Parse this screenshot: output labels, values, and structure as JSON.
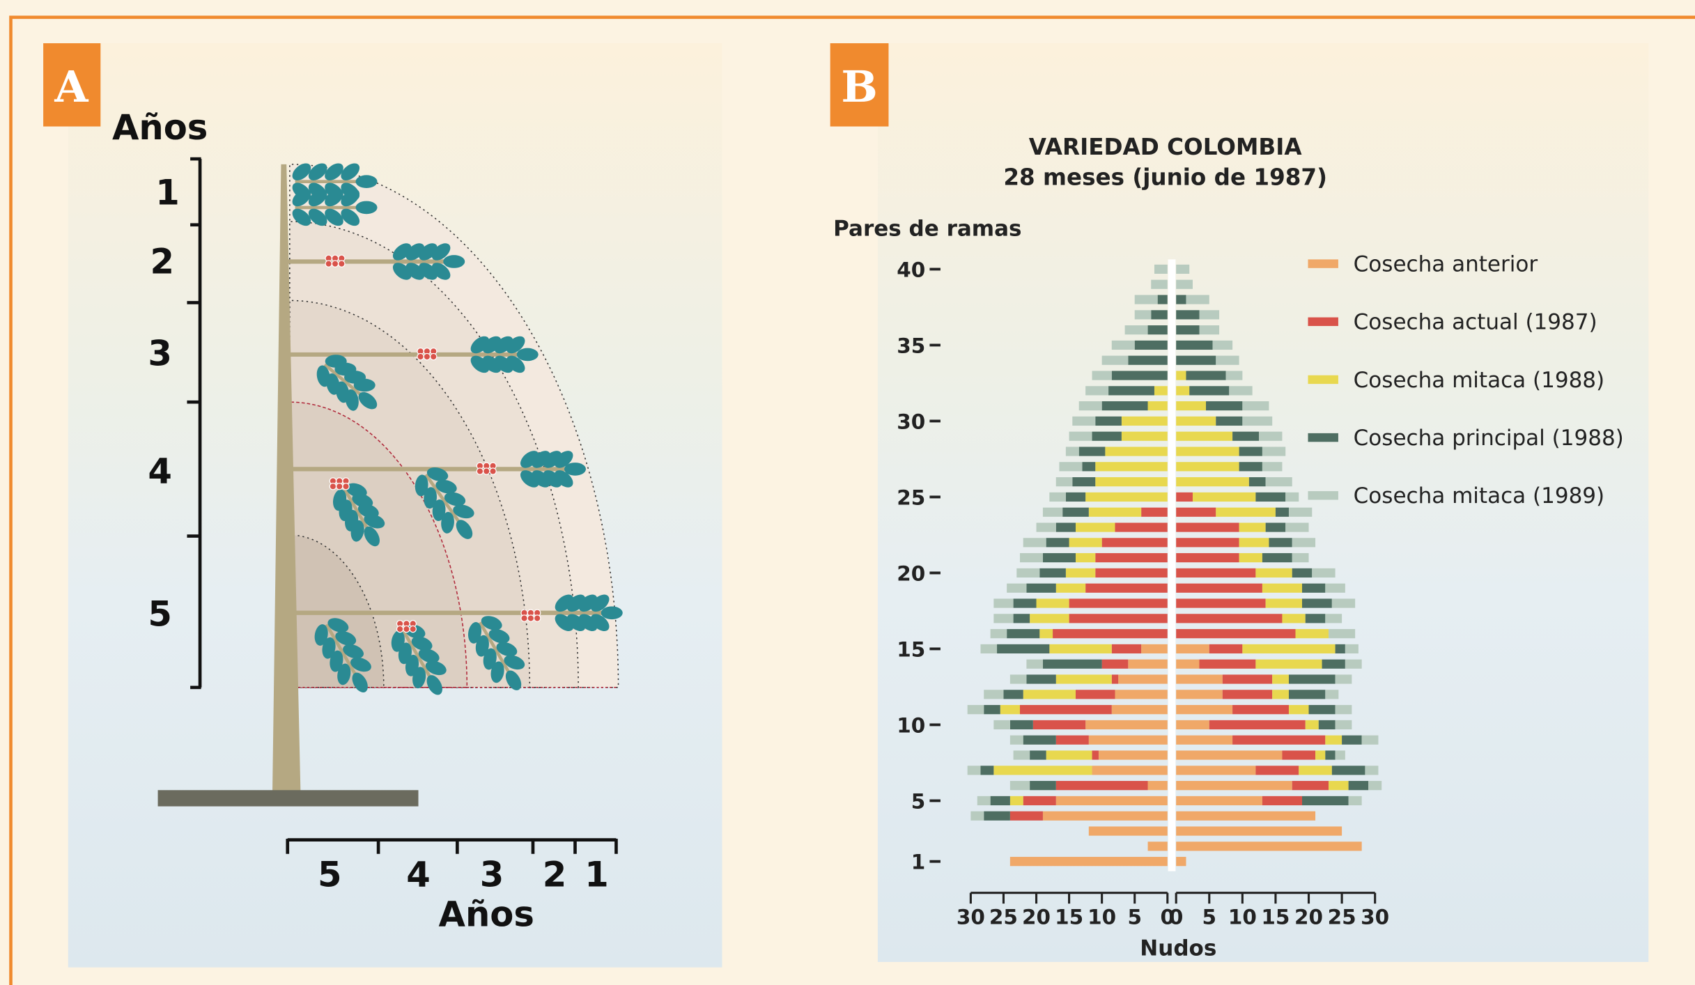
{
  "panel_a": {
    "label": "A",
    "y_axis_title": "Años",
    "y_labels": [
      "1",
      "2",
      "3",
      "4",
      "5"
    ],
    "x_labels": [
      "5",
      "4",
      "3",
      "2",
      "1"
    ],
    "x_axis_title": "Años"
  },
  "chart_data": {
    "type": "pyramid",
    "label": "B",
    "title": "VARIEDAD COLOMBIA",
    "subtitle": "28 meses (junio de 1987)",
    "y_axis_label": "Pares de ramas",
    "x_axis_label": "Nudos",
    "categories": [
      1,
      null,
      null,
      null,
      5,
      null,
      null,
      null,
      null,
      10,
      null,
      null,
      null,
      null,
      15,
      null,
      null,
      null,
      null,
      20,
      null,
      null,
      null,
      null,
      25,
      null,
      null,
      null,
      null,
      30,
      null,
      null,
      null,
      null,
      35,
      null,
      null,
      null,
      null,
      40
    ],
    "xlim": [
      0,
      30
    ],
    "xticks": [
      0,
      5,
      10,
      15,
      20,
      25,
      30
    ],
    "series": [
      {
        "name": "Cosecha anterior",
        "color": "#f0a868",
        "left": [
          24,
          3,
          12,
          19,
          17,
          3,
          11.5,
          10.5,
          12,
          12.5,
          8.5,
          8,
          7.5,
          6,
          4,
          0,
          0,
          0,
          0,
          0,
          0,
          0,
          0,
          0,
          0,
          0,
          0,
          0,
          0,
          0,
          0,
          0,
          0,
          0,
          0,
          0,
          0,
          0,
          0,
          0
        ],
        "right": [
          1.5,
          28,
          25,
          21,
          13,
          17.5,
          12,
          16,
          8.5,
          5,
          8.5,
          7,
          7,
          3.5,
          5,
          0,
          0,
          0,
          0,
          0,
          0,
          0,
          0,
          0,
          0,
          0,
          0,
          0,
          0,
          0,
          0,
          0,
          0,
          0,
          0,
          0,
          0,
          0,
          0,
          0
        ]
      },
      {
        "name": "Cosecha actual (1987)",
        "color": "#d9534a",
        "left": [
          0,
          0,
          0,
          5,
          5,
          14,
          0,
          1,
          5,
          8,
          14,
          6,
          1,
          4,
          4.5,
          17.5,
          15,
          15,
          12.5,
          11,
          11,
          10,
          8,
          4,
          0,
          0,
          0,
          0,
          0,
          0,
          0,
          0,
          0,
          0,
          0,
          0,
          0,
          0,
          0,
          0
        ],
        "right": [
          0,
          0,
          0,
          0,
          6,
          5.5,
          6.5,
          5,
          14,
          14.5,
          8.5,
          7.5,
          7.5,
          8.5,
          5,
          18,
          16,
          13.5,
          13,
          12,
          9.5,
          9.5,
          9.5,
          6,
          2.5,
          0,
          0,
          0,
          0,
          0,
          0,
          0,
          0,
          0,
          0,
          0,
          0,
          0,
          0,
          0
        ]
      },
      {
        "name": "Cosecha mitaca (1988)",
        "color": "#e8d84f",
        "left": [
          0,
          0,
          0,
          0,
          2,
          0,
          15,
          7,
          0,
          0,
          3,
          8,
          8.5,
          0,
          9.5,
          2,
          6,
          5,
          4.5,
          4.5,
          3,
          5,
          6,
          8,
          12.5,
          11,
          11,
          9.5,
          7,
          7,
          3,
          2,
          0,
          0,
          0,
          0,
          0,
          0,
          0,
          0
        ],
        "right": [
          0,
          0,
          0,
          0,
          0,
          3,
          5,
          1.5,
          2.5,
          2,
          3,
          2.5,
          2.5,
          10,
          14,
          5,
          3.5,
          5.5,
          6,
          5.5,
          3.5,
          4.5,
          4,
          9,
          9.5,
          11,
          9.5,
          9.5,
          8.5,
          6,
          4.5,
          2,
          1.5,
          0,
          0,
          0,
          0,
          0,
          0,
          0
        ]
      },
      {
        "name": "Cosecha principal (1988)",
        "color": "#4e6e62",
        "left": [
          0,
          0,
          0,
          4,
          3,
          4,
          2,
          2.5,
          5,
          3.5,
          2.5,
          3,
          4.5,
          9,
          8,
          5,
          2.5,
          3.5,
          4.5,
          4,
          5,
          3.5,
          3,
          4,
          3,
          3.5,
          2,
          4,
          4.5,
          4,
          7,
          7,
          8.5,
          6,
          5,
          3,
          2.5,
          1.5,
          0,
          0
        ],
        "right": [
          0,
          0,
          0,
          0,
          7,
          3,
          5,
          1.5,
          3,
          2.5,
          4,
          5.5,
          7,
          3.5,
          1.5,
          0,
          3,
          4.5,
          3.5,
          3,
          4.5,
          3.5,
          3,
          2,
          4.5,
          2.5,
          3.5,
          3.5,
          4,
          4,
          5.5,
          6,
          6,
          6,
          5.5,
          3.5,
          3.5,
          1.5,
          0,
          0
        ]
      },
      {
        "name": "Cosecha mitaca (1989)",
        "color": "#b8cbbf",
        "left": [
          0,
          0,
          0,
          2,
          2,
          3,
          2,
          2.5,
          2,
          2.5,
          2.5,
          3,
          2.5,
          2.5,
          2.5,
          2.5,
          3,
          3,
          3,
          3.5,
          3.5,
          3.5,
          3,
          3,
          2.5,
          2.5,
          3.5,
          2,
          3.5,
          3.5,
          3.5,
          3.5,
          3,
          4,
          3.5,
          3.5,
          2.5,
          3.5,
          2.5,
          2
        ],
        "right": [
          0,
          0,
          0,
          0,
          2,
          2,
          2,
          1.5,
          2.5,
          2.5,
          2.5,
          2,
          2.5,
          2.5,
          2,
          4,
          2.5,
          3.5,
          3,
          3.5,
          2.5,
          3.5,
          3.5,
          3.5,
          2,
          4,
          3,
          3.5,
          3.5,
          4.5,
          4,
          3.5,
          2.5,
          3.5,
          3,
          3,
          3,
          3.5,
          2.5,
          2
        ]
      }
    ]
  }
}
